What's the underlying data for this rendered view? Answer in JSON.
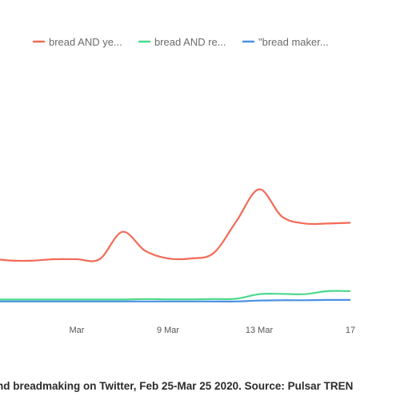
{
  "caption": "nd breadmaking on Twitter, Feb 25-Mar 25 2020. Source: Pulsar TREN",
  "chart_data": {
    "type": "line",
    "title": "",
    "xlabel": "",
    "ylabel": "",
    "grid": false,
    "legend_position": "top",
    "x_ticks": [
      "Mar",
      "9 Mar",
      "13 Mar",
      "17"
    ],
    "x": [
      "Mar 1",
      "Mar 2",
      "Mar 3",
      "Mar 4",
      "Mar 5",
      "Mar 6",
      "Mar 7",
      "Mar 8",
      "Mar 9",
      "Mar 10",
      "Mar 11",
      "Mar 12",
      "Mar 13",
      "Mar 14",
      "Mar 15",
      "Mar 16",
      "Mar 17"
    ],
    "series": [
      {
        "name": "bread AND ye...",
        "color": "#f26b57",
        "values": [
          410,
          392,
          390,
          400,
          400,
          400,
          580,
          455,
          405,
          405,
          440,
          650,
          860,
          680,
          635,
          635,
          640
        ]
      },
      {
        "name": "bread AND re...",
        "color": "#4cd98b",
        "values": [
          135,
          135,
          135,
          135,
          135,
          135,
          135,
          138,
          136,
          136,
          138,
          140,
          170,
          172,
          170,
          190,
          190
        ]
      },
      {
        "name": "\"bread maker...",
        "color": "#4a90e2",
        "values": [
          122,
          122,
          122,
          122,
          122,
          122,
          122,
          122,
          122,
          122,
          122,
          122,
          128,
          130,
          130,
          132,
          132
        ]
      }
    ]
  }
}
